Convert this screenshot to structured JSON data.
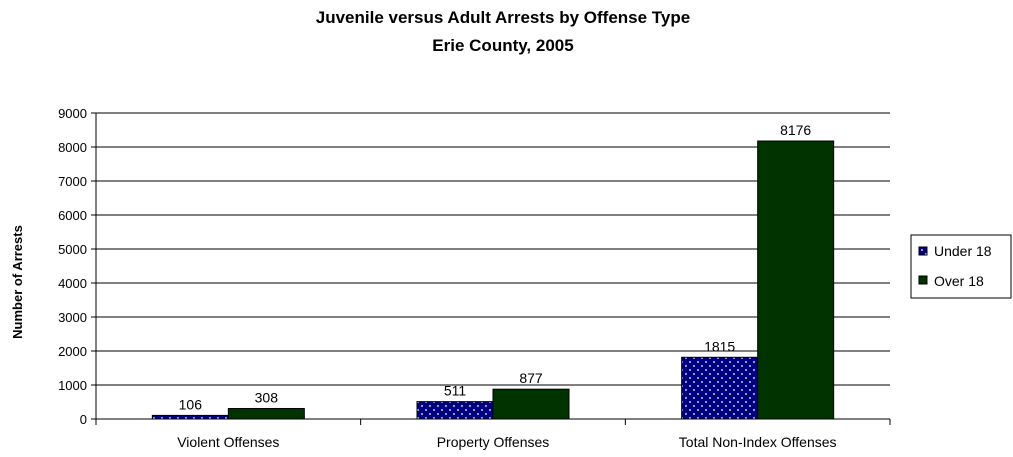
{
  "chart_data": {
    "type": "bar",
    "title": "Juvenile versus Adult Arrests by Offense Type",
    "subtitle": "Erie County, 2005",
    "xlabel": "",
    "ylabel": "Number of Arrests",
    "ylim": [
      0,
      9000
    ],
    "yticks": [
      0,
      1000,
      2000,
      3000,
      4000,
      5000,
      6000,
      7000,
      8000,
      9000
    ],
    "grid": true,
    "legend_position": "right",
    "categories": [
      "Violent Offenses",
      "Property Offenses",
      "Total Non-Index Offenses"
    ],
    "series": [
      {
        "name": "Under 18",
        "values": [
          106,
          511,
          1815
        ],
        "color": "#000080",
        "pattern": "dotted"
      },
      {
        "name": "Over 18",
        "values": [
          308,
          877,
          8176
        ],
        "color": "#003300",
        "pattern": "solid"
      }
    ]
  }
}
